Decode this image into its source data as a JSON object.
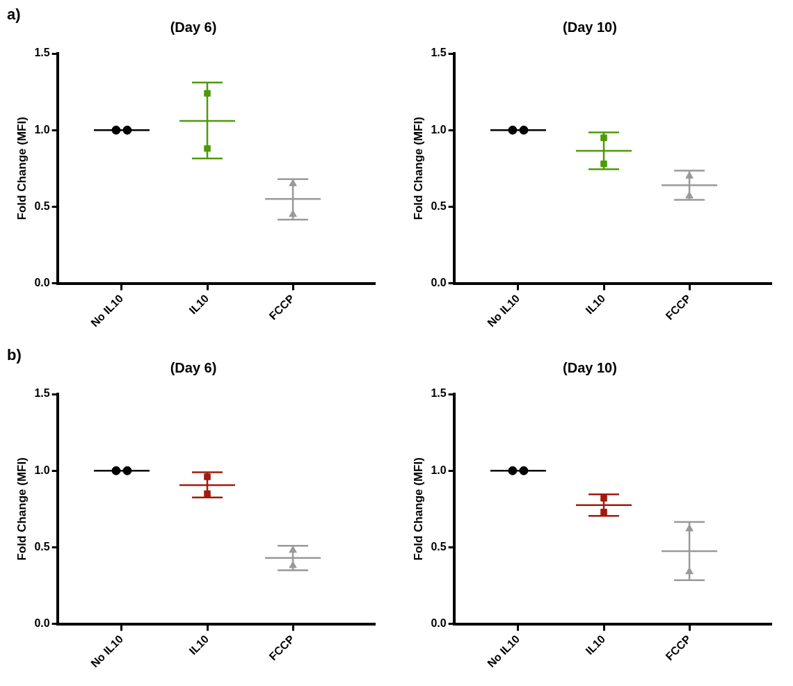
{
  "chart_data": [
    {
      "type": "scatter",
      "title": "(Day 6)",
      "ylabel": "Fold Change (MFI)",
      "categories": [
        "No IL10",
        "IL10",
        "FCCP"
      ],
      "ylim": [
        0,
        1.5
      ],
      "yticks": [
        {
          "value": 0,
          "label": "0.0"
        },
        {
          "value": 0.5,
          "label": "0.5"
        },
        {
          "value": 1,
          "label": "1.0"
        },
        {
          "value": 1.5,
          "label": "1.5"
        }
      ],
      "annotations": [
        "a)"
      ],
      "series": [
        {
          "x": [
            "No IL10",
            "No IL10"
          ],
          "values": [
            1.0,
            1.0
          ],
          "color": "#000000",
          "marker": "circle"
        },
        {
          "x": [
            "IL10",
            "IL10"
          ],
          "values": [
            1.24,
            0.88
          ],
          "color": "#4e9a06",
          "marker": "square"
        },
        {
          "x": [
            "FCCP",
            "FCCP"
          ],
          "values": [
            0.65,
            0.45
          ],
          "color": "#999999",
          "marker": "triangle"
        },
        {
          "type": "box",
          "colors": [
            "#000000",
            "#4e9a06",
            "#999999"
          ],
          "boxes": [
            {
              "low": 1.0,
              "q1": 1.0,
              "median": 1.0,
              "q3": 1.0,
              "high": 1.0
            },
            {
              "low": 0.815,
              "q1": 1.06,
              "median": 1.06,
              "q3": 1.06,
              "high": 1.31
            },
            {
              "low": 0.415,
              "q1": 0.55,
              "median": 0.55,
              "q3": 0.55,
              "high": 0.68
            }
          ]
        }
      ]
    },
    {
      "type": "scatter",
      "title": "(Day 10)",
      "ylabel": "Fold Change (MFI)",
      "categories": [
        "No IL10",
        "IL10",
        "FCCP"
      ],
      "ylim": [
        0,
        1.5
      ],
      "yticks": [
        {
          "value": 0,
          "label": "0.0"
        },
        {
          "value": 0.5,
          "label": "0.5"
        },
        {
          "value": 1,
          "label": "1.0"
        },
        {
          "value": 1.5,
          "label": "1.5"
        }
      ],
      "series": [
        {
          "x": [
            "No IL10",
            "No IL10"
          ],
          "values": [
            1.0,
            1.0
          ],
          "color": "#000000",
          "marker": "circle"
        },
        {
          "x": [
            "IL10",
            "IL10"
          ],
          "values": [
            0.95,
            0.78
          ],
          "color": "#4e9a06",
          "marker": "square"
        },
        {
          "x": [
            "FCCP",
            "FCCP"
          ],
          "values": [
            0.7,
            0.57
          ],
          "color": "#999999",
          "marker": "triangle"
        },
        {
          "type": "box",
          "colors": [
            "#000000",
            "#4e9a06",
            "#999999"
          ],
          "boxes": [
            {
              "low": 1.0,
              "q1": 1.0,
              "median": 1.0,
              "q3": 1.0,
              "high": 1.0
            },
            {
              "low": 0.745,
              "q1": 0.865,
              "median": 0.865,
              "q3": 0.865,
              "high": 0.985
            },
            {
              "low": 0.545,
              "q1": 0.64,
              "median": 0.64,
              "q3": 0.64,
              "high": 0.735
            }
          ]
        }
      ]
    },
    {
      "type": "scatter",
      "title": "(Day 6)",
      "ylabel": "Fold Change (MFI)",
      "categories": [
        "No IL10",
        "IL10",
        "FCCP"
      ],
      "ylim": [
        0,
        1.5
      ],
      "yticks": [
        {
          "value": 0,
          "label": "0.0"
        },
        {
          "value": 0.5,
          "label": "0.5"
        },
        {
          "value": 1,
          "label": "1.0"
        },
        {
          "value": 1.5,
          "label": "1.5"
        }
      ],
      "annotations": [
        "b)"
      ],
      "series": [
        {
          "x": [
            "No IL10",
            "No IL10"
          ],
          "values": [
            1.0,
            1.0
          ],
          "color": "#000000",
          "marker": "circle"
        },
        {
          "x": [
            "IL10",
            "IL10"
          ],
          "values": [
            0.96,
            0.85
          ],
          "color": "#a31a0c",
          "marker": "square"
        },
        {
          "x": [
            "FCCP",
            "FCCP"
          ],
          "values": [
            0.48,
            0.38
          ],
          "color": "#999999",
          "marker": "triangle"
        },
        {
          "type": "box",
          "colors": [
            "#000000",
            "#a31a0c",
            "#999999"
          ],
          "boxes": [
            {
              "low": 1.0,
              "q1": 1.0,
              "median": 1.0,
              "q3": 1.0,
              "high": 1.0
            },
            {
              "low": 0.825,
              "q1": 0.905,
              "median": 0.905,
              "q3": 0.905,
              "high": 0.99
            },
            {
              "low": 0.35,
              "q1": 0.43,
              "median": 0.43,
              "q3": 0.43,
              "high": 0.51
            }
          ]
        }
      ]
    },
    {
      "type": "scatter",
      "title": "(Day 10)",
      "ylabel": "Fold Change (MFI)",
      "categories": [
        "No IL10",
        "IL10",
        "FCCP"
      ],
      "ylim": [
        0,
        1.5
      ],
      "yticks": [
        {
          "value": 0,
          "label": "0.0"
        },
        {
          "value": 0.5,
          "label": "0.5"
        },
        {
          "value": 1,
          "label": "1.0"
        },
        {
          "value": 1.5,
          "label": "1.5"
        }
      ],
      "series": [
        {
          "x": [
            "No IL10",
            "No IL10"
          ],
          "values": [
            1.0,
            1.0
          ],
          "color": "#000000",
          "marker": "circle"
        },
        {
          "x": [
            "IL10",
            "IL10"
          ],
          "values": [
            0.82,
            0.73
          ],
          "color": "#a31a0c",
          "marker": "square"
        },
        {
          "x": [
            "FCCP",
            "FCCP"
          ],
          "values": [
            0.62,
            0.34
          ],
          "color": "#999999",
          "marker": "triangle"
        },
        {
          "type": "box",
          "colors": [
            "#000000",
            "#a31a0c",
            "#999999"
          ],
          "boxes": [
            {
              "low": 1.0,
              "q1": 1.0,
              "median": 1.0,
              "q3": 1.0,
              "high": 1.0
            },
            {
              "low": 0.705,
              "q1": 0.775,
              "median": 0.775,
              "q3": 0.775,
              "high": 0.845
            },
            {
              "low": 0.285,
              "q1": 0.475,
              "median": 0.475,
              "q3": 0.475,
              "high": 0.665
            }
          ]
        }
      ]
    }
  ]
}
